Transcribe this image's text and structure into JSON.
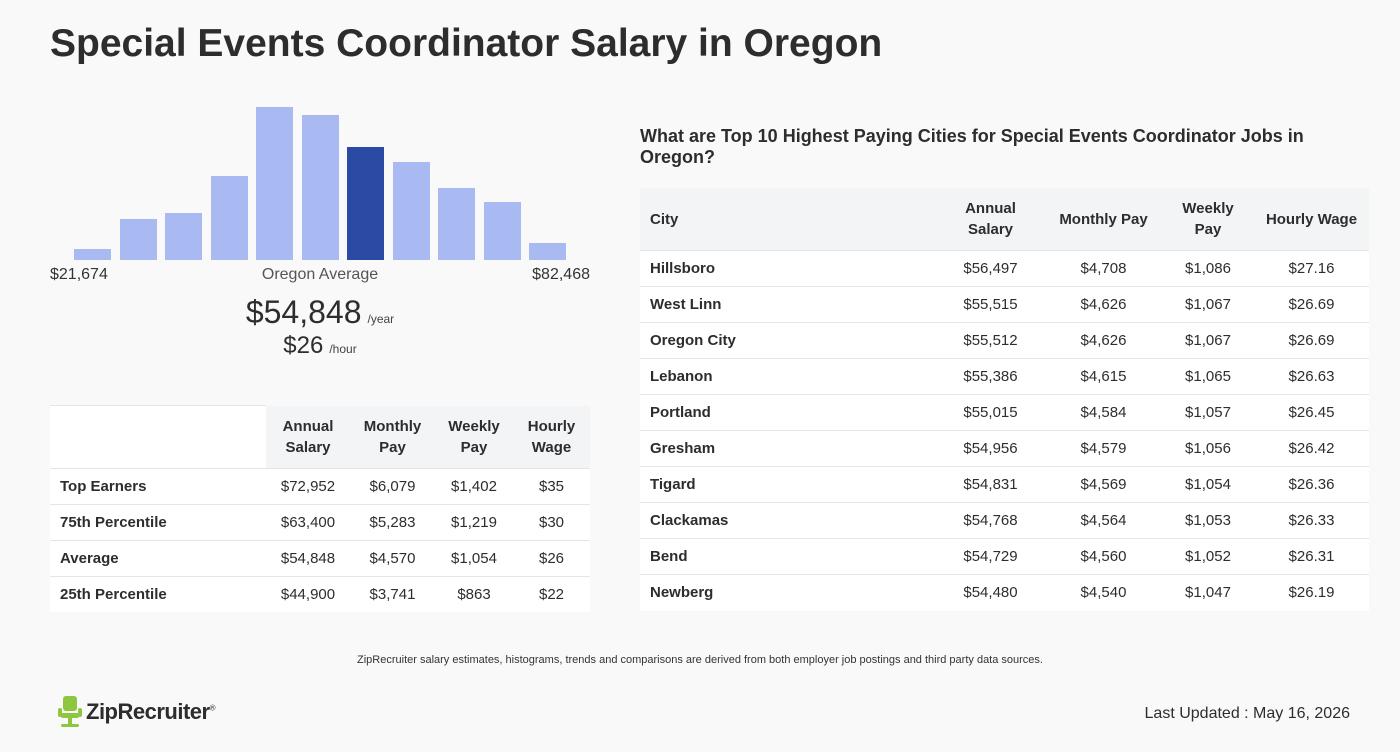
{
  "page": {
    "title": "Special Events Coordinator Salary in Oregon"
  },
  "histogram": {
    "min_label": "$21,674",
    "max_label": "$82,468",
    "center_label": "Oregon Average",
    "bar_color": "#a9b9f2",
    "highlight_color": "#2a4aa4",
    "levels": [
      0.07,
      0.27,
      0.31,
      0.55,
      1.0,
      0.95,
      0.74,
      0.64,
      0.47,
      0.38,
      0.11
    ],
    "highlight_index": 6
  },
  "average": {
    "yearly": "$54,848",
    "yearly_unit": "/year",
    "hourly": "$26",
    "hourly_unit": "/hour"
  },
  "percentiles": {
    "headers": [
      "Annual Salary",
      "Monthly Pay",
      "Weekly Pay",
      "Hourly Wage"
    ],
    "rows": [
      {
        "label": "Top Earners",
        "values": [
          "$72,952",
          "$6,079",
          "$1,402",
          "$35"
        ]
      },
      {
        "label": "75th Percentile",
        "values": [
          "$63,400",
          "$5,283",
          "$1,219",
          "$30"
        ]
      },
      {
        "label": "Average",
        "values": [
          "$54,848",
          "$4,570",
          "$1,054",
          "$26"
        ]
      },
      {
        "label": "25th Percentile",
        "values": [
          "$44,900",
          "$3,741",
          "$863",
          "$22"
        ]
      }
    ]
  },
  "cities": {
    "heading": "What are Top 10 Highest Paying Cities for Special Events Coordinator Jobs in Oregon?",
    "headers": [
      "City",
      "Annual Salary",
      "Monthly Pay",
      "Weekly Pay",
      "Hourly Wage"
    ],
    "rows": [
      {
        "city": "Hillsboro",
        "values": [
          "$56,497",
          "$4,708",
          "$1,086",
          "$27.16"
        ]
      },
      {
        "city": "West Linn",
        "values": [
          "$55,515",
          "$4,626",
          "$1,067",
          "$26.69"
        ]
      },
      {
        "city": "Oregon City",
        "values": [
          "$55,512",
          "$4,626",
          "$1,067",
          "$26.69"
        ]
      },
      {
        "city": "Lebanon",
        "values": [
          "$55,386",
          "$4,615",
          "$1,065",
          "$26.63"
        ]
      },
      {
        "city": "Portland",
        "values": [
          "$55,015",
          "$4,584",
          "$1,057",
          "$26.45"
        ]
      },
      {
        "city": "Gresham",
        "values": [
          "$54,956",
          "$4,579",
          "$1,056",
          "$26.42"
        ]
      },
      {
        "city": "Tigard",
        "values": [
          "$54,831",
          "$4,569",
          "$1,054",
          "$26.36"
        ]
      },
      {
        "city": "Clackamas",
        "values": [
          "$54,768",
          "$4,564",
          "$1,053",
          "$26.33"
        ]
      },
      {
        "city": "Bend",
        "values": [
          "$54,729",
          "$4,560",
          "$1,052",
          "$26.31"
        ]
      },
      {
        "city": "Newberg",
        "values": [
          "$54,480",
          "$4,540",
          "$1,047",
          "$26.19"
        ]
      }
    ]
  },
  "footer": {
    "note": "ZipRecruiter salary estimates, histograms, trends and comparisons are derived from both employer job postings and third party data sources.",
    "logo_text": "ZipRecruiter",
    "logo_mark": "®",
    "logo_color": "#8dc63f",
    "updated": "Last Updated : May 16, 2026"
  }
}
